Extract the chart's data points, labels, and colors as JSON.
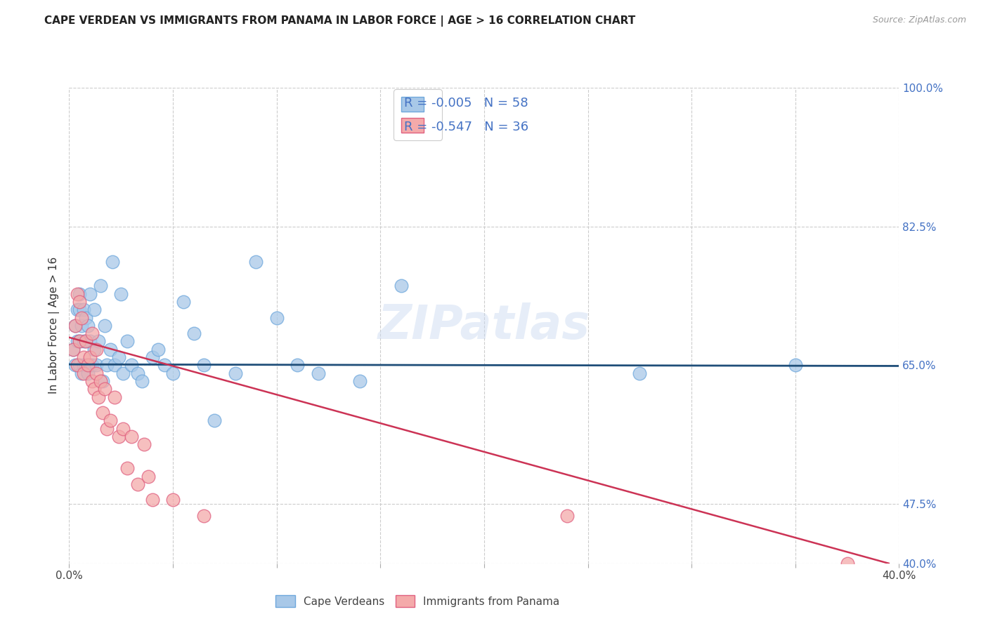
{
  "title": "CAPE VERDEAN VS IMMIGRANTS FROM PANAMA IN LABOR FORCE | AGE > 16 CORRELATION CHART",
  "source": "Source: ZipAtlas.com",
  "ylabel": "In Labor Force | Age > 16",
  "xlim": [
    0.0,
    0.4
  ],
  "ylim": [
    0.4,
    1.0
  ],
  "right_ytick_labels": [
    "100.0%",
    "82.5%",
    "65.0%",
    "47.5%",
    "40.0%"
  ],
  "right_ytick_positions": [
    1.0,
    0.825,
    0.65,
    0.475,
    0.4
  ],
  "blue_R": "-0.005",
  "blue_N": "58",
  "pink_R": "-0.547",
  "pink_N": "36",
  "blue_fill": "#a8c8e8",
  "pink_fill": "#f4aaaa",
  "blue_edge": "#6fa8dc",
  "pink_edge": "#e06080",
  "blue_line_color": "#1f4e79",
  "pink_line_color": "#cc3355",
  "grid_color": "#cccccc",
  "background_color": "#ffffff",
  "watermark": "ZIPatlas",
  "legend_label_blue": "Cape Verdeans",
  "legend_label_pink": "Immigrants from Panama",
  "text_color_R": "#4472c4",
  "text_color_N": "#4472c4",
  "blue_scatter_x": [
    0.002,
    0.003,
    0.003,
    0.004,
    0.004,
    0.005,
    0.005,
    0.005,
    0.005,
    0.006,
    0.006,
    0.007,
    0.007,
    0.007,
    0.008,
    0.008,
    0.008,
    0.009,
    0.009,
    0.01,
    0.01,
    0.01,
    0.011,
    0.012,
    0.012,
    0.013,
    0.014,
    0.015,
    0.016,
    0.017,
    0.018,
    0.02,
    0.021,
    0.022,
    0.024,
    0.025,
    0.026,
    0.028,
    0.03,
    0.033,
    0.035,
    0.04,
    0.043,
    0.046,
    0.05,
    0.055,
    0.06,
    0.065,
    0.07,
    0.08,
    0.09,
    0.1,
    0.11,
    0.12,
    0.14,
    0.16,
    0.275,
    0.35
  ],
  "blue_scatter_y": [
    0.67,
    0.65,
    0.7,
    0.68,
    0.72,
    0.65,
    0.68,
    0.72,
    0.74,
    0.64,
    0.7,
    0.65,
    0.68,
    0.72,
    0.65,
    0.68,
    0.71,
    0.64,
    0.7,
    0.65,
    0.68,
    0.74,
    0.65,
    0.67,
    0.72,
    0.65,
    0.68,
    0.75,
    0.63,
    0.7,
    0.65,
    0.67,
    0.78,
    0.65,
    0.66,
    0.74,
    0.64,
    0.68,
    0.65,
    0.64,
    0.63,
    0.66,
    0.67,
    0.65,
    0.64,
    0.73,
    0.69,
    0.65,
    0.58,
    0.64,
    0.78,
    0.71,
    0.65,
    0.64,
    0.63,
    0.75,
    0.64,
    0.65
  ],
  "pink_scatter_x": [
    0.002,
    0.003,
    0.004,
    0.004,
    0.005,
    0.005,
    0.006,
    0.007,
    0.007,
    0.008,
    0.009,
    0.01,
    0.011,
    0.011,
    0.012,
    0.013,
    0.013,
    0.014,
    0.015,
    0.016,
    0.017,
    0.018,
    0.02,
    0.022,
    0.024,
    0.026,
    0.028,
    0.03,
    0.033,
    0.036,
    0.038,
    0.04,
    0.05,
    0.065,
    0.24,
    0.375
  ],
  "pink_scatter_y": [
    0.67,
    0.7,
    0.74,
    0.65,
    0.73,
    0.68,
    0.71,
    0.64,
    0.66,
    0.68,
    0.65,
    0.66,
    0.63,
    0.69,
    0.62,
    0.64,
    0.67,
    0.61,
    0.63,
    0.59,
    0.62,
    0.57,
    0.58,
    0.61,
    0.56,
    0.57,
    0.52,
    0.56,
    0.5,
    0.55,
    0.51,
    0.48,
    0.48,
    0.46,
    0.46,
    0.4
  ],
  "blue_line_x": [
    0.0,
    0.4
  ],
  "blue_line_y": [
    0.651,
    0.649
  ],
  "pink_line_x": [
    0.0,
    0.395
  ],
  "pink_line_y": [
    0.685,
    0.4
  ]
}
